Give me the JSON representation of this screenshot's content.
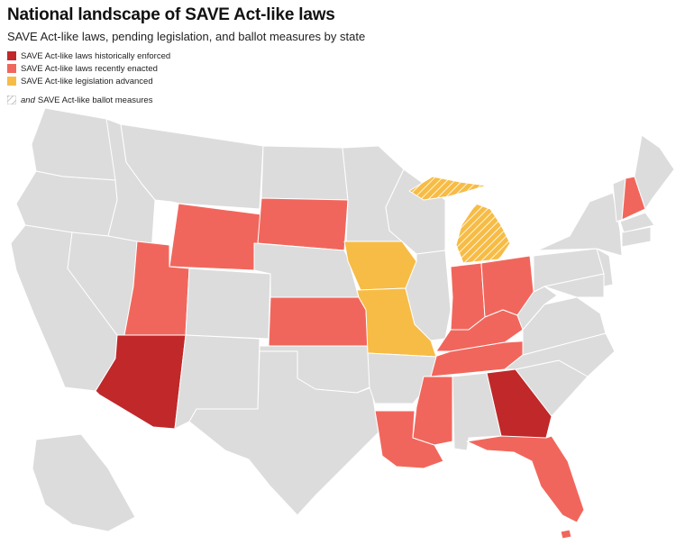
{
  "title": "National landscape of SAVE Act-like laws",
  "subtitle": "SAVE Act-like laws, pending legislation, and ballot measures by state",
  "legend": {
    "historical": {
      "label": "SAVE Act-like laws historically enforced",
      "color": "#c0282a"
    },
    "recent": {
      "label": "SAVE Act-like laws recently enacted",
      "color": "#f1665c"
    },
    "advanced": {
      "label": "SAVE Act-like legislation advanced",
      "color": "#f7bc45"
    },
    "ballot": {
      "prefix": "and",
      "label": "SAVE Act-like ballot measures"
    }
  },
  "colors": {
    "none": "#dcdcdc",
    "border": "#ffffff",
    "hatch": "#ffffff"
  },
  "state_status": {
    "historical": [
      "Arizona",
      "Georgia"
    ],
    "recent": [
      "Utah",
      "Wyoming",
      "South Dakota",
      "Kansas",
      "Indiana",
      "Ohio",
      "Kentucky",
      "Tennessee",
      "Mississippi",
      "Louisiana",
      "Florida",
      "New Hampshire"
    ],
    "advanced": [
      "Iowa",
      "Missouri",
      "Michigan"
    ],
    "ballot": [
      "Michigan"
    ]
  }
}
